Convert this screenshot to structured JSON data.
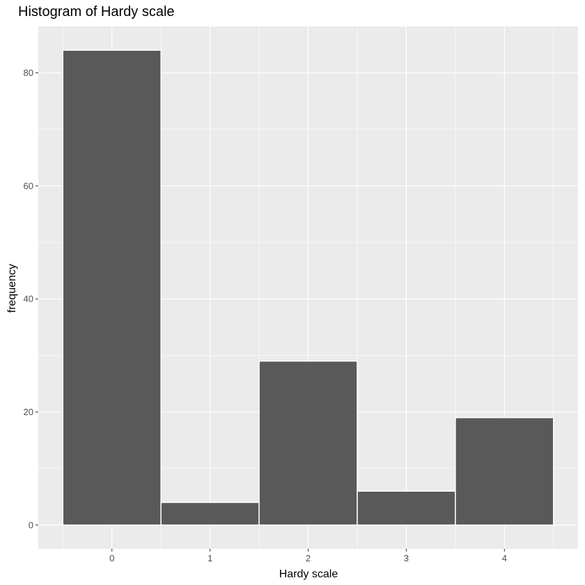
{
  "chart_data": {
    "type": "bar",
    "title": "Histogram of Hardy scale",
    "xlabel": "Hardy scale",
    "ylabel": "frequency",
    "categories": [
      "0",
      "1",
      "2",
      "3",
      "4"
    ],
    "x": [
      0,
      1,
      2,
      3,
      4
    ],
    "values": [
      84,
      4,
      29,
      6,
      19
    ],
    "xlim": [
      -0.75,
      4.75
    ],
    "ylim": [
      -4.2,
      88.2
    ],
    "x_ticks": [
      0,
      1,
      2,
      3,
      4
    ],
    "y_ticks": [
      0,
      20,
      40,
      60,
      80
    ],
    "grid": true,
    "colors": {
      "panel_background": "#ebebeb",
      "gridline": "#ffffff",
      "bar_fill": "#595959",
      "bar_outline": "#ffffff",
      "tick_text": "#4d4d4d",
      "tick_mark": "#333333"
    }
  }
}
